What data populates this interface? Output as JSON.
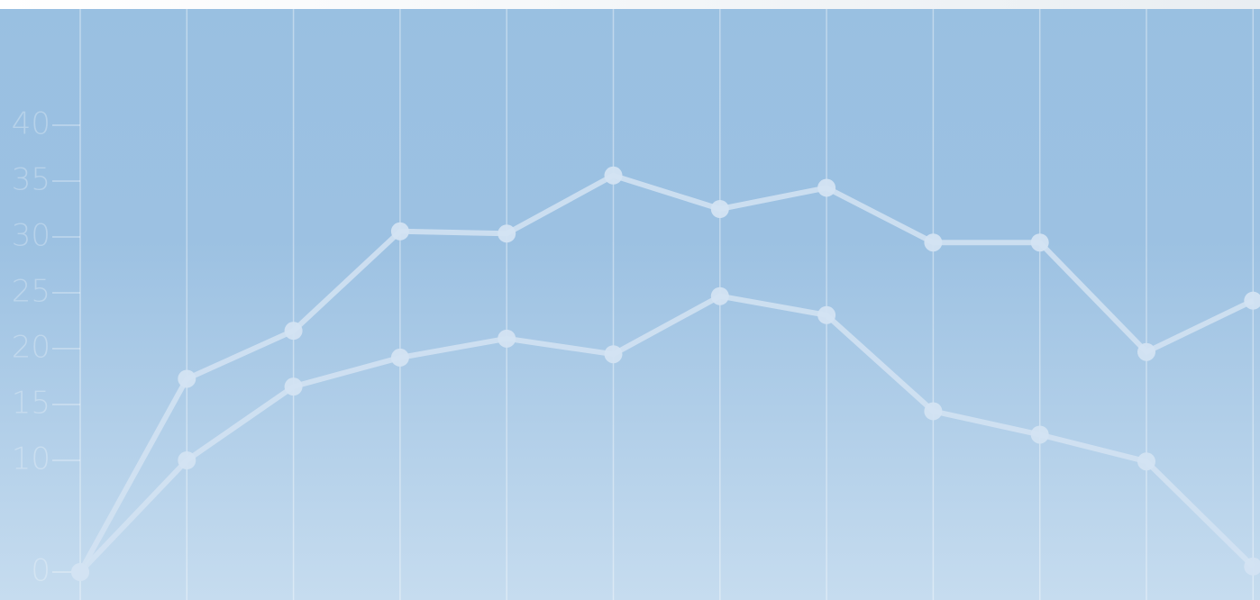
{
  "chart_data": {
    "type": "line",
    "categories": [
      null,
      null,
      null,
      null,
      null,
      null,
      null,
      null,
      null,
      null,
      null,
      null
    ],
    "series": [
      {
        "color": "#d3e3f2",
        "values": [
          0,
          17.3,
          21.6,
          30.5,
          30.3,
          35.5,
          32.5,
          34.4,
          29.5,
          29.5,
          19.7,
          24.3
        ]
      },
      {
        "color": "#d3e3f2",
        "values": [
          0,
          10,
          16.6,
          19.2,
          20.9,
          19.5,
          24.7,
          23.0,
          14.4,
          12.3,
          9.9,
          0.5
        ]
      }
    ],
    "ylim": [
      0,
      40
    ],
    "yticks": [
      0,
      10,
      15,
      20,
      25,
      30,
      35,
      40
    ],
    "grid": true
  }
}
